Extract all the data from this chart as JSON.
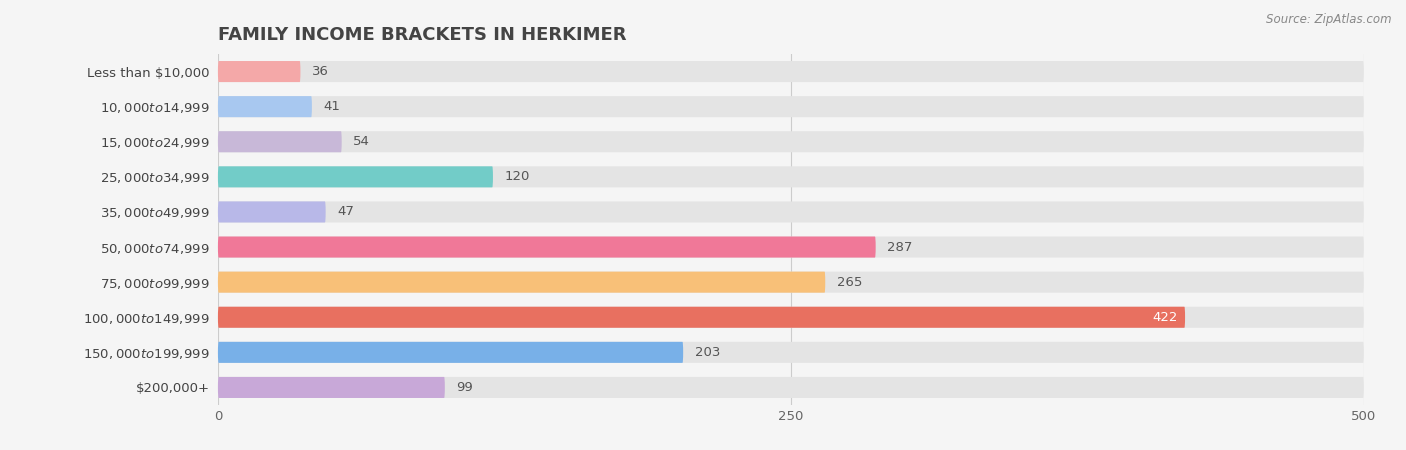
{
  "title": "FAMILY INCOME BRACKETS IN HERKIMER",
  "source": "Source: ZipAtlas.com",
  "categories": [
    "Less than $10,000",
    "$10,000 to $14,999",
    "$15,000 to $24,999",
    "$25,000 to $34,999",
    "$35,000 to $49,999",
    "$50,000 to $74,999",
    "$75,000 to $99,999",
    "$100,000 to $149,999",
    "$150,000 to $199,999",
    "$200,000+"
  ],
  "values": [
    36,
    41,
    54,
    120,
    47,
    287,
    265,
    422,
    203,
    99
  ],
  "bar_colors": [
    "#f4a8a8",
    "#a8c8f0",
    "#c8b8d8",
    "#72ccc8",
    "#b8b8e8",
    "#f07898",
    "#f8c078",
    "#e87060",
    "#78b0e8",
    "#c8a8d8"
  ],
  "xlim": [
    0,
    500
  ],
  "xticks": [
    0,
    250,
    500
  ],
  "background_color": "#f5f5f5",
  "bar_bg_color": "#e4e4e4",
  "title_fontsize": 13,
  "label_fontsize": 9.5,
  "value_fontsize": 9.5,
  "bar_height": 0.6,
  "value_inside_color": "white",
  "value_outside_color": "#555555",
  "value_inside_threshold": 422
}
